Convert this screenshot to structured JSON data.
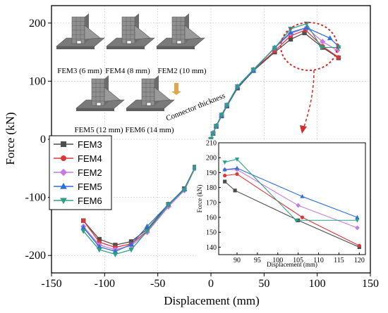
{
  "chart_data": [
    {
      "type": "line",
      "xlabel": "Displacement (mm)",
      "ylabel": "Force (kN)",
      "xlim": [
        -150,
        150
      ],
      "ylim": [
        -230,
        230
      ],
      "xticks": [
        -150,
        -100,
        -50,
        0,
        50,
        100,
        150
      ],
      "yticks": [
        -200,
        -100,
        0,
        100,
        200
      ],
      "grid": true,
      "legend_position": "left-middle",
      "series": [
        {
          "name": "FEM3",
          "color": "#4d4d4d",
          "marker": "square",
          "x": [
            -120,
            -105,
            -90,
            -75,
            -60,
            -40,
            -25,
            -15,
            -10,
            -5,
            -2,
            0,
            2,
            5,
            10,
            15,
            25,
            40,
            60,
            75,
            88,
            105,
            120
          ],
          "y": [
            -140,
            -172,
            -182,
            -176,
            -155,
            -112,
            -85,
            -48,
            -33,
            -20,
            -10,
            0,
            10,
            22,
            40,
            57,
            88,
            118,
            150,
            172,
            183,
            158,
            140
          ]
        },
        {
          "name": "FEM4",
          "color": "#d9383a",
          "marker": "circle",
          "x": [
            -120,
            -105,
            -90,
            -75,
            -60,
            -40,
            -25,
            -15,
            -10,
            -5,
            -2,
            0,
            2,
            5,
            10,
            15,
            25,
            40,
            60,
            75,
            89,
            105,
            120
          ],
          "y": [
            -140,
            -177,
            -186,
            -180,
            -158,
            -114,
            -86,
            -49,
            -34,
            -21,
            -10,
            0,
            10,
            23,
            41,
            58,
            90,
            119,
            152,
            178,
            188,
            160,
            141
          ]
        },
        {
          "name": "FEM2",
          "color": "#c77be0",
          "marker": "diamond",
          "x": [
            -120,
            -105,
            -90,
            -75,
            -60,
            -40,
            -25,
            -15,
            -10,
            -5,
            -2,
            0,
            2,
            5,
            10,
            15,
            25,
            40,
            60,
            75,
            90,
            105,
            119
          ],
          "y": [
            -150,
            -182,
            -190,
            -183,
            -160,
            -116,
            -88,
            -50,
            -35,
            -21,
            -11,
            0,
            11,
            23,
            42,
            59,
            91,
            120,
            157,
            182,
            192,
            168,
            153
          ]
        },
        {
          "name": "FEM5",
          "color": "#2f6fd6",
          "marker": "triangle-up",
          "x": [
            -120,
            -105,
            -90,
            -75,
            -60,
            -40,
            -25,
            -15,
            -10,
            -5,
            -2,
            0,
            2,
            5,
            10,
            15,
            25,
            40,
            60,
            75,
            90,
            112,
            120
          ],
          "y": [
            -152,
            -185,
            -193,
            -181,
            -150,
            -112,
            -86,
            -49,
            -34,
            -21,
            -10,
            0,
            10,
            23,
            41,
            58,
            90,
            118,
            158,
            184,
            192,
            174,
            160
          ]
        },
        {
          "name": "FEM6",
          "color": "#2e9e86",
          "marker": "triangle-down",
          "x": [
            -120,
            -105,
            -90,
            -75,
            -60,
            -40,
            -25,
            -15,
            -10,
            -5,
            -2,
            0,
            2,
            5,
            10,
            15,
            25,
            40,
            60,
            75,
            90,
            104,
            120
          ],
          "y": [
            -158,
            -190,
            -198,
            -190,
            -158,
            -113,
            -87,
            -49,
            -34,
            -21,
            -10,
            0,
            10,
            23,
            42,
            59,
            91,
            120,
            157,
            190,
            199,
            158,
            158
          ]
        }
      ]
    },
    {
      "type": "line",
      "xlabel": "Displacement (mm)",
      "ylabel": "Force (kN)",
      "xlim": [
        85.5,
        121.5
      ],
      "ylim": [
        135,
        210
      ],
      "xticks": [
        90,
        95,
        100,
        105,
        110,
        115,
        120
      ],
      "yticks": [
        140,
        150,
        160,
        170,
        180,
        190,
        200,
        210
      ],
      "series": [
        {
          "name": "FEM3",
          "x": [
            87,
            89.5,
            105,
            120
          ],
          "y": [
            184,
            178,
            158,
            140
          ]
        },
        {
          "name": "FEM4",
          "x": [
            87,
            90,
            106,
            120
          ],
          "y": [
            188,
            189,
            160,
            141
          ]
        },
        {
          "name": "FEM2",
          "x": [
            87,
            90,
            105,
            119.5
          ],
          "y": [
            192,
            192,
            168,
            153
          ]
        },
        {
          "name": "FEM5",
          "x": [
            87,
            90,
            106,
            119.5
          ],
          "y": [
            192,
            193,
            174,
            160
          ]
        },
        {
          "name": "FEM6",
          "x": [
            87,
            90,
            104.5,
            119.5
          ],
          "y": [
            197,
            199,
            158,
            158
          ]
        }
      ]
    }
  ],
  "model_labels": [
    "FEM3 (6 mm)",
    "FEM4 (8 mm)",
    "FEM2 (10 mm)",
    "FEM5 (12 mm)",
    "FEM6 (14 mm)"
  ],
  "annotation": "Connector thickness",
  "colors": {
    "highlight_circle": "#d42a2a",
    "arrow": "#d42a2a",
    "thickness_arrow": "#e2a64a",
    "model_fill": "#8f8f8f"
  }
}
